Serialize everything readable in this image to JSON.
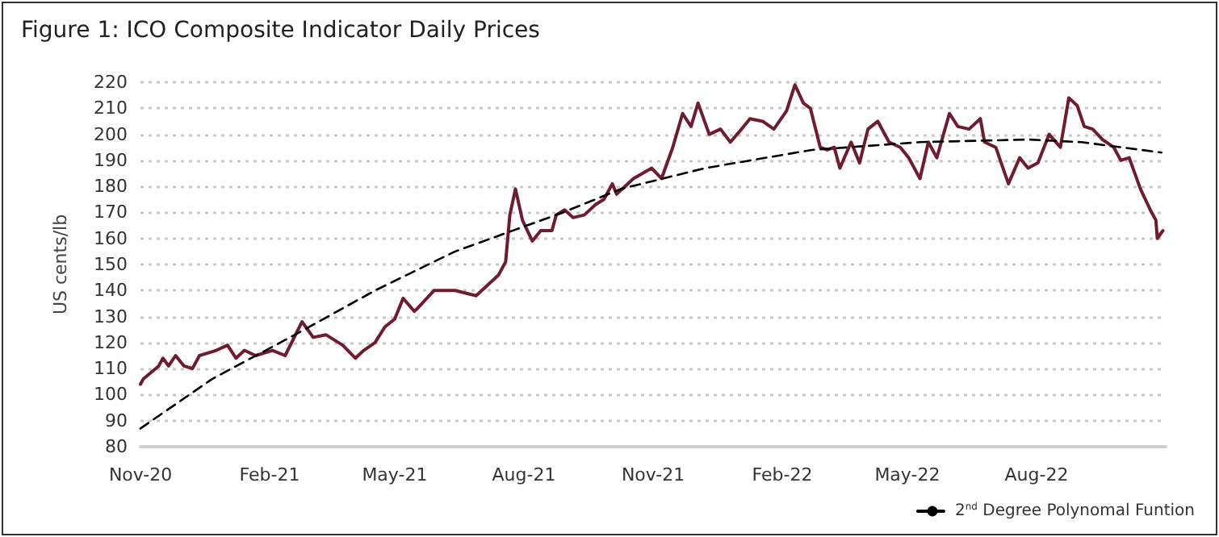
{
  "chart_data": {
    "type": "line",
    "title": "Figure 1: ICO Composite Indicator Daily Prices",
    "ylabel": "US cents/lb",
    "ylim": [
      80,
      220
    ],
    "yticks": [
      80,
      90,
      100,
      110,
      120,
      130,
      140,
      150,
      160,
      170,
      180,
      190,
      200,
      210,
      220
    ],
    "xlim": [
      "2020-11-01",
      "2022-11-01"
    ],
    "xticks": [
      {
        "value": "2020-11-01",
        "label": "Nov-20"
      },
      {
        "value": "2021-02-01",
        "label": "Feb-21"
      },
      {
        "value": "2021-05-01",
        "label": "May-21"
      },
      {
        "value": "2021-08-01",
        "label": "Aug-21"
      },
      {
        "value": "2021-11-01",
        "label": "Nov-21"
      },
      {
        "value": "2022-02-01",
        "label": "Feb-22"
      },
      {
        "value": "2022-05-01",
        "label": "May-22"
      },
      {
        "value": "2022-08-01",
        "label": "Aug-22"
      }
    ],
    "grid": "y",
    "legend": "bottom right",
    "marker": "none",
    "series": [
      {
        "color": "#701c2f",
        "line_style": "solid",
        "x": [
          "2020-11-01",
          "2020-11-03",
          "2020-11-14",
          "2020-11-17",
          "2020-11-21",
          "2020-11-26",
          "2020-12-02",
          "2020-12-08",
          "2020-12-13",
          "2020-12-25",
          "2021-01-02",
          "2021-01-08",
          "2021-01-14",
          "2021-01-22",
          "2021-02-03",
          "2021-02-12",
          "2021-02-24",
          "2021-03-04",
          "2021-03-13",
          "2021-03-25",
          "2021-04-03",
          "2021-04-09",
          "2021-04-17",
          "2021-04-24",
          "2021-05-01",
          "2021-05-07",
          "2021-05-15",
          "2021-05-17",
          "2021-05-29",
          "2021-06-13",
          "2021-06-28",
          "2021-07-14",
          "2021-07-19",
          "2021-07-22",
          "2021-07-26",
          "2021-07-31",
          "2021-08-07",
          "2021-08-13",
          "2021-08-21",
          "2021-08-24",
          "2021-08-30",
          "2021-09-05",
          "2021-09-13",
          "2021-09-21",
          "2021-09-27",
          "2021-10-03",
          "2021-10-06",
          "2021-10-18",
          "2021-10-31",
          "2021-11-07",
          "2021-11-15",
          "2021-11-22",
          "2021-11-28",
          "2021-12-03",
          "2021-12-11",
          "2021-12-19",
          "2021-12-26",
          "2022-01-03",
          "2022-01-09",
          "2022-01-18",
          "2022-01-26",
          "2022-02-04",
          "2022-02-10",
          "2022-02-16",
          "2022-02-21",
          "2022-02-28",
          "2022-03-05",
          "2022-03-10",
          "2022-03-14",
          "2022-03-22",
          "2022-03-28",
          "2022-04-03",
          "2022-04-10",
          "2022-04-18",
          "2022-04-26",
          "2022-05-02",
          "2022-05-10",
          "2022-05-16",
          "2022-05-22",
          "2022-05-31",
          "2022-06-06",
          "2022-06-14",
          "2022-06-22",
          "2022-06-25",
          "2022-07-03",
          "2022-07-12",
          "2022-07-20",
          "2022-07-26",
          "2022-08-02",
          "2022-08-10",
          "2022-08-18",
          "2022-08-24",
          "2022-08-30",
          "2022-09-04",
          "2022-09-10",
          "2022-09-17",
          "2022-09-25",
          "2022-09-30",
          "2022-10-06",
          "2022-10-14",
          "2022-10-21",
          "2022-10-25",
          "2022-10-26",
          "2022-10-30"
        ],
        "values": [
          104,
          106,
          111,
          114,
          111,
          115,
          111,
          110,
          115,
          117,
          119,
          114,
          117,
          115,
          117,
          115,
          128,
          122,
          123,
          119,
          114,
          117,
          120,
          126,
          129,
          137,
          132,
          133,
          140,
          140,
          138,
          146,
          151,
          169,
          179,
          167,
          159,
          163,
          163,
          169,
          171,
          168,
          169,
          173,
          175,
          181,
          177,
          183,
          187,
          183,
          195,
          208,
          203,
          212,
          200,
          202,
          197,
          202,
          206,
          205,
          202,
          209,
          219,
          212,
          210,
          195,
          194,
          195,
          187,
          197,
          189,
          202,
          205,
          197,
          195,
          191,
          183,
          197,
          191,
          208,
          203,
          202,
          206,
          197,
          195,
          181,
          191,
          187,
          189,
          200,
          195,
          214,
          211,
          203,
          202,
          198,
          195,
          190,
          191,
          179,
          171,
          167,
          160,
          163
        ]
      },
      {
        "name": "2$^{nd}$ Degree Polynomal Funtion",
        "color": "#000000",
        "line_style": "dashed",
        "x": [
          "2020-11-01",
          "2020-12-22",
          "2021-02-19",
          "2021-04-17",
          "2021-06-13",
          "2021-08-29",
          "2021-10-09",
          "2021-12-08",
          "2022-02-22",
          "2022-05-10",
          "2022-07-26",
          "2022-09-02",
          "2022-10-29"
        ],
        "values": [
          87,
          106,
          123,
          140,
          155,
          170,
          179,
          187,
          194,
          197,
          198,
          197,
          193
        ]
      }
    ]
  }
}
